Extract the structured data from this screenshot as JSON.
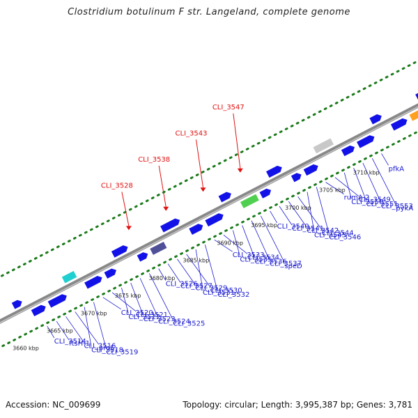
{
  "title": "Clostridium botulinum F str. Langeland, complete genome",
  "footer": {
    "accession": "Accession: NC_009699",
    "topology": "Topology: circular; Length: 3,995,387 bp; Genes: 3,781"
  },
  "scale_labels": [
    "3660 kbp",
    "3665 kbp",
    "3670 kbp",
    "3675 kbp",
    "3680 kbp",
    "3685 kbp",
    "3690 kbp",
    "3695 kbp",
    "3700 kbp",
    "3705 kbp",
    "3710 kbp"
  ],
  "gene_labels": [
    "CLI_3514",
    "ftsH-1",
    "CLI_3516",
    "proS",
    "CLI_3518",
    "CLI_3519",
    "CLI_3520",
    "CLI_3521",
    "CLI_3522",
    "CLI_3523",
    "CLI_3524",
    "CLI_3525",
    "CLI_3526",
    "CLI_3527",
    "CLI_3529",
    "CLI_3530",
    "CLI_3531",
    "CLI_3532",
    "CLI_3533",
    "CLI_3534",
    "CLI_3535",
    "CLI_3536",
    "CLI_3537",
    "speD",
    "CLI_3540",
    "CLI_3541",
    "CLI_3542",
    "CLI_3544",
    "CLI_3545",
    "CLI_3546",
    "rumA-2",
    "CLI_3549",
    "CLI_3550",
    "CLI_3551",
    "CLI_3553",
    "pykA",
    "pfkA"
  ],
  "highlight_labels": [
    "CLI_3528",
    "CLI_3538",
    "CLI_3543",
    "CLI_3547"
  ],
  "colors": {
    "forward_gene": "#1212e8",
    "highlight": "#e01010",
    "gene_label": "#1a1ad0",
    "dotted_track": "#1a7a1a",
    "backbone": "#888888"
  }
}
